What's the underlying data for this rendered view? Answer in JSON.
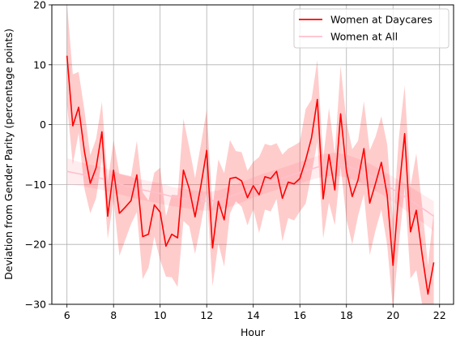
{
  "chart_data": {
    "type": "line",
    "title": "",
    "xlabel": "Hour",
    "ylabel": "Deviation from Gender Parity (percentage points)",
    "xlim": [
      5.35,
      22.6
    ],
    "ylim": [
      -30,
      20
    ],
    "xticks": [
      6,
      8,
      10,
      12,
      14,
      16,
      18,
      20,
      22
    ],
    "yticks": [
      -30,
      -20,
      -10,
      0,
      10,
      20
    ],
    "grid": true,
    "legend_position": "top-right",
    "series": [
      {
        "name": "Women at Daycares",
        "color": "#ff0000",
        "band_color": "#ff0000",
        "band_opacity": 0.2,
        "x": [
          6.0,
          6.25,
          6.5,
          6.75,
          7.0,
          7.25,
          7.5,
          7.75,
          8.0,
          8.25,
          8.5,
          8.75,
          9.0,
          9.25,
          9.5,
          9.75,
          10.0,
          10.25,
          10.5,
          10.75,
          11.0,
          11.25,
          11.5,
          11.75,
          12.0,
          12.25,
          12.5,
          12.75,
          13.0,
          13.25,
          13.5,
          13.75,
          14.0,
          14.25,
          14.5,
          14.75,
          15.0,
          15.25,
          15.5,
          15.75,
          16.0,
          16.25,
          16.5,
          16.75,
          17.0,
          17.25,
          17.5,
          17.75,
          18.0,
          18.25,
          18.5,
          18.75,
          19.0,
          19.25,
          19.5,
          19.75,
          20.0,
          20.25,
          20.5,
          20.75,
          21.0,
          21.25,
          21.5,
          21.75
        ],
        "y": [
          11.5,
          -0.2,
          2.9,
          -4.5,
          -9.8,
          -7.2,
          -1.2,
          -15.3,
          -7.6,
          -14.8,
          -13.8,
          -12.7,
          -8.4,
          -18.7,
          -18.3,
          -13.4,
          -14.6,
          -20.3,
          -18.3,
          -18.9,
          -7.6,
          -10.7,
          -15.4,
          -10.2,
          -4.3,
          -20.6,
          -12.8,
          -15.9,
          -9.0,
          -8.8,
          -9.4,
          -12.2,
          -10.2,
          -11.7,
          -8.7,
          -9.0,
          -7.8,
          -12.3,
          -9.6,
          -9.9,
          -9.0,
          -5.9,
          -2.2,
          4.2,
          -12.4,
          -5.0,
          -10.9,
          1.8,
          -7.7,
          -12.0,
          -9.2,
          -4.0,
          -13.1,
          -9.8,
          -6.3,
          -11.8,
          -23.5,
          -11.3,
          -1.5,
          -17.9,
          -14.3,
          -21.7,
          -28.3,
          -23.0
        ],
        "lower": [
          3.5,
          -6.7,
          -1.4,
          -10.7,
          -14.8,
          -12.3,
          -5.6,
          -19.1,
          -12.6,
          -21.9,
          -19.3,
          -16.6,
          -14.6,
          -25.8,
          -23.9,
          -18.7,
          -22.6,
          -25.4,
          -25.5,
          -27.1,
          -16.1,
          -17.0,
          -21.6,
          -16.7,
          -11.3,
          -27.0,
          -19.8,
          -23.7,
          -14.8,
          -12.8,
          -13.7,
          -16.8,
          -14.1,
          -18.1,
          -14.2,
          -14.5,
          -12.4,
          -19.5,
          -15.6,
          -16.0,
          -14.5,
          -13.2,
          -8.2,
          -2.9,
          -19.0,
          -13.0,
          -16.8,
          -7.0,
          -15.8,
          -20.0,
          -15.2,
          -11.6,
          -21.8,
          -17.6,
          -14.2,
          -20.1,
          -31.0,
          -20.1,
          -10.5,
          -25.7,
          -24.3,
          -30.0,
          -31.0,
          -30.0
        ],
        "upper": [
          20.3,
          8.4,
          8.8,
          2.4,
          -5.1,
          -2.4,
          3.8,
          -9.6,
          -2.6,
          -8.2,
          -8.4,
          -8.6,
          -2.7,
          -11.3,
          -12.7,
          -8.0,
          -7.2,
          -15.3,
          -11.7,
          -11.8,
          1.0,
          -3.8,
          -8.9,
          -3.3,
          2.5,
          -14.0,
          -5.8,
          -8.1,
          -2.6,
          -4.4,
          -4.6,
          -7.7,
          -6.2,
          -5.4,
          -3.2,
          -3.5,
          -3.1,
          -5.0,
          -4.0,
          -3.5,
          -2.9,
          2.6,
          4.2,
          10.8,
          -5.8,
          2.8,
          -4.9,
          9.8,
          0.5,
          -4.1,
          -2.7,
          3.9,
          -4.3,
          -2.0,
          1.4,
          -3.3,
          -16.2,
          -2.2,
          6.5,
          -10.3,
          -4.8,
          -13.5,
          -23.5,
          -14.5
        ]
      },
      {
        "name": "Women at All",
        "color": "#ffc0cb",
        "band_color": "#ffc0cb",
        "band_opacity": 0.3,
        "x": [
          6.0,
          6.5,
          7.0,
          7.5,
          8.0,
          8.5,
          9.0,
          9.5,
          10.0,
          10.5,
          11.0,
          11.5,
          12.0,
          12.5,
          13.0,
          13.5,
          14.0,
          14.5,
          15.0,
          15.5,
          16.0,
          16.5,
          17.0,
          17.5,
          18.0,
          18.5,
          19.0,
          19.5,
          20.0,
          20.5,
          21.0,
          21.5,
          21.75
        ],
        "y": [
          -7.8,
          -8.2,
          -8.6,
          -9.0,
          -9.6,
          -10.2,
          -10.7,
          -11.1,
          -11.5,
          -12.0,
          -12.3,
          -12.6,
          -12.8,
          -12.6,
          -12.0,
          -11.3,
          -10.5,
          -9.8,
          -9.2,
          -8.6,
          -8.0,
          -7.4,
          -6.8,
          -6.6,
          -6.9,
          -7.6,
          -8.5,
          -9.6,
          -10.8,
          -12.0,
          -13.3,
          -14.6,
          -15.3
        ],
        "lower": [
          -10.0,
          -10.2,
          -10.5,
          -10.9,
          -11.4,
          -11.9,
          -12.4,
          -12.8,
          -13.2,
          -13.6,
          -13.9,
          -14.2,
          -14.4,
          -14.2,
          -13.7,
          -13.0,
          -12.2,
          -11.5,
          -10.9,
          -10.3,
          -9.8,
          -9.2,
          -8.7,
          -8.5,
          -8.8,
          -9.5,
          -10.5,
          -11.6,
          -12.9,
          -14.2,
          -15.6,
          -17.0,
          -17.8
        ],
        "upper": [
          -5.6,
          -6.2,
          -6.7,
          -7.1,
          -7.8,
          -8.5,
          -9.0,
          -9.4,
          -9.8,
          -10.4,
          -10.7,
          -11.0,
          -11.2,
          -11.0,
          -10.3,
          -9.6,
          -8.8,
          -8.1,
          -7.5,
          -6.9,
          -6.2,
          -5.6,
          -4.9,
          -4.7,
          -5.0,
          -5.7,
          -6.5,
          -7.6,
          -8.7,
          -9.8,
          -11.0,
          -12.2,
          -12.8
        ]
      }
    ]
  }
}
